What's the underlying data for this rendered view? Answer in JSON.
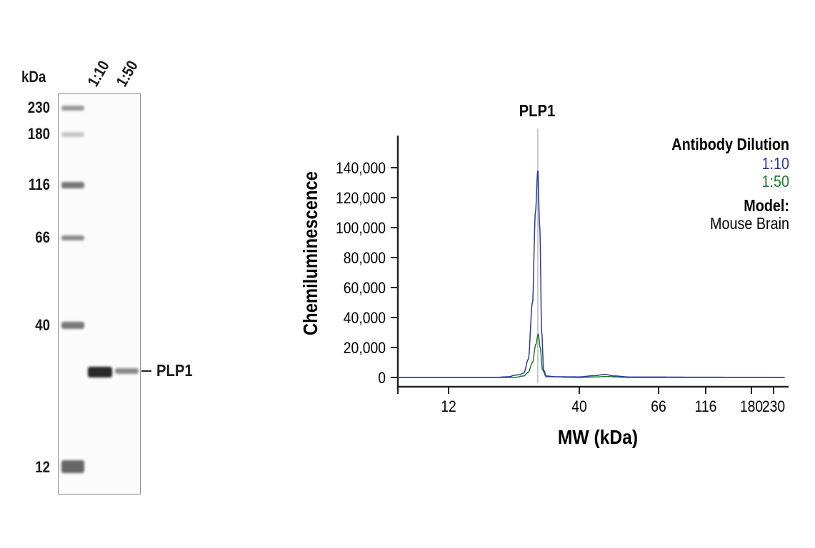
{
  "blot": {
    "unit_label": "kDa",
    "lanes": [
      "1:10",
      "1:50"
    ],
    "markers": [
      "230",
      "180",
      "116",
      "66",
      "40",
      "12"
    ],
    "target_label": "PLP1"
  },
  "chart_data": {
    "type": "line",
    "annotation": "PLP1",
    "xlabel": "MW (kDa)",
    "ylabel": "Chemiluminescence",
    "x_ticks": [
      12,
      40,
      66,
      116,
      180,
      230
    ],
    "x_tick_labels": [
      "12",
      "40",
      "66",
      "116",
      "180",
      "230"
    ],
    "y_ticks": [
      0,
      20000,
      40000,
      60000,
      80000,
      100000,
      120000,
      140000
    ],
    "y_tick_labels": [
      "0",
      "20,000",
      "40,000",
      "60,000",
      "80,000",
      "100,000",
      "120,000",
      "140,000"
    ],
    "ylim": [
      -5000,
      160000
    ],
    "annotation_x": 27.3,
    "legend": {
      "title": "Antibody Dilution",
      "model_label": "Model:",
      "model_value": "Mouse Brain",
      "placement": "top-right"
    },
    "series": [
      {
        "name": "1:10",
        "color": "#2b3a9e",
        "points": [
          [
            7.5,
            0
          ],
          [
            18,
            0
          ],
          [
            21,
            500
          ],
          [
            22,
            1500
          ],
          [
            23,
            1800
          ],
          [
            24,
            3000
          ],
          [
            25,
            12000
          ],
          [
            26,
            50000
          ],
          [
            26.7,
            110000
          ],
          [
            27.3,
            138000
          ],
          [
            27.8,
            100000
          ],
          [
            28.3,
            30000
          ],
          [
            28.8,
            5000
          ],
          [
            29.5,
            1000
          ],
          [
            32,
            500
          ],
          [
            40,
            400
          ],
          [
            44,
            1200
          ],
          [
            47,
            2000
          ],
          [
            50,
            1000
          ],
          [
            55,
            300
          ],
          [
            100,
            200
          ],
          [
            230,
            100
          ],
          [
            260,
            0
          ]
        ]
      },
      {
        "name": "1:50",
        "color": "#1e7a2e",
        "points": [
          [
            7.5,
            0
          ],
          [
            22,
            0
          ],
          [
            24,
            1000
          ],
          [
            25,
            3500
          ],
          [
            26,
            10000
          ],
          [
            26.8,
            22000
          ],
          [
            27.4,
            29000
          ],
          [
            27.9,
            20000
          ],
          [
            28.5,
            5000
          ],
          [
            29.5,
            500
          ],
          [
            40,
            0
          ],
          [
            44,
            300
          ],
          [
            47,
            600
          ],
          [
            55,
            0
          ],
          [
            260,
            0
          ]
        ]
      }
    ]
  }
}
